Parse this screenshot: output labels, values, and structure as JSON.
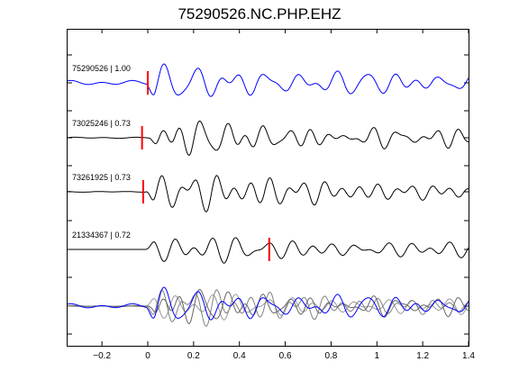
{
  "title": "75290526.NC.PHP.EHZ",
  "chart_data": {
    "type": "line",
    "title": "75290526.NC.PHP.EHZ",
    "xlabel": "",
    "ylabel": "",
    "xlim": [
      -0.35,
      1.4
    ],
    "xticks": [
      -0.2,
      0,
      0.2,
      0.4,
      0.6,
      0.8,
      1,
      1.2,
      1.4
    ],
    "xtick_labels": [
      "−0.2",
      "0",
      "0.2",
      "0.4",
      "0.6",
      "0.8",
      "1",
      "1.2",
      "1.4"
    ],
    "grid": false,
    "legend": "none",
    "series": [
      {
        "label": "75290526 | 1.00",
        "color": "#0000ff",
        "pick_x": 0.0,
        "onset": -0.01,
        "seed": 11,
        "noise": 0.12
      },
      {
        "label": "73025246 | 0.73",
        "color": "#000000",
        "pick_x": -0.025,
        "onset": 0.0,
        "seed": 23,
        "noise": 0.03
      },
      {
        "label": "73261925 | 0.73",
        "color": "#000000",
        "pick_x": -0.02,
        "onset": -0.01,
        "seed": 37,
        "noise": 0.02
      },
      {
        "label": "21334367 | 0.72",
        "color": "#000000",
        "pick_x": 0.53,
        "onset": -0.01,
        "seed": 53,
        "noise": 0.0
      }
    ],
    "overlay_colors": [
      "#0000ff",
      "#666666",
      "#808080",
      "#999999"
    ],
    "pick_color": "#ff0000"
  }
}
